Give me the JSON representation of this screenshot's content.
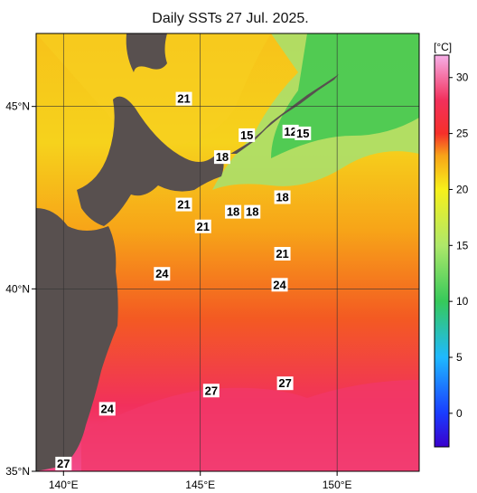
{
  "title": "Daily SSTs 27 Jul. 2025.",
  "map": {
    "lon_min": 139,
    "lon_max": 153,
    "lat_min": 35,
    "lat_max": 47,
    "lon_ticks": [
      {
        "value": 140,
        "label": "140°E"
      },
      {
        "value": 145,
        "label": "145°E"
      },
      {
        "value": 150,
        "label": "150°E"
      }
    ],
    "lat_ticks": [
      {
        "value": 35,
        "label": "35°N"
      },
      {
        "value": 40,
        "label": "40°N"
      },
      {
        "value": 45,
        "label": "45°N"
      }
    ],
    "land_color": "#58504f",
    "grid": true
  },
  "colorbar": {
    "unit": "[°C]",
    "min": -3,
    "max": 32,
    "ticks": [
      {
        "value": 0,
        "label": "0"
      },
      {
        "value": 5,
        "label": "5"
      },
      {
        "value": 10,
        "label": "10"
      },
      {
        "value": 15,
        "label": "15"
      },
      {
        "value": 20,
        "label": "20"
      },
      {
        "value": 25,
        "label": "25"
      },
      {
        "value": 30,
        "label": "30"
      }
    ],
    "stops": [
      {
        "value": -3,
        "color": "#3a00cc"
      },
      {
        "value": 0,
        "color": "#1a3cff"
      },
      {
        "value": 5,
        "color": "#1fb9ff"
      },
      {
        "value": 10,
        "color": "#36c95a"
      },
      {
        "value": 15,
        "color": "#aee86a"
      },
      {
        "value": 20,
        "color": "#f7f01a"
      },
      {
        "value": 23,
        "color": "#f8a418"
      },
      {
        "value": 25,
        "color": "#f6302a"
      },
      {
        "value": 28,
        "color": "#f2305c"
      },
      {
        "value": 32,
        "color": "#f7b0e8"
      }
    ]
  },
  "isotherm_labels": [
    {
      "text": "21",
      "lon": 144.4,
      "lat": 45.2
    },
    {
      "text": "15",
      "lon": 146.7,
      "lat": 44.2
    },
    {
      "text": "12",
      "lon": 148.3,
      "lat": 44.3
    },
    {
      "text": "15",
      "lon": 148.75,
      "lat": 44.25
    },
    {
      "text": "18",
      "lon": 145.8,
      "lat": 43.6
    },
    {
      "text": "18",
      "lon": 148.0,
      "lat": 42.5
    },
    {
      "text": "18",
      "lon": 146.2,
      "lat": 42.1
    },
    {
      "text": "18",
      "lon": 146.9,
      "lat": 42.1
    },
    {
      "text": "21",
      "lon": 144.4,
      "lat": 42.3
    },
    {
      "text": "21",
      "lon": 145.1,
      "lat": 41.7
    },
    {
      "text": "21",
      "lon": 148.0,
      "lat": 40.95
    },
    {
      "text": "24",
      "lon": 143.6,
      "lat": 40.4
    },
    {
      "text": "24",
      "lon": 147.9,
      "lat": 40.1
    },
    {
      "text": "27",
      "lon": 145.4,
      "lat": 37.2
    },
    {
      "text": "27",
      "lon": 148.1,
      "lat": 37.4
    },
    {
      "text": "24",
      "lon": 141.6,
      "lat": 36.7
    },
    {
      "text": "27",
      "lon": 140.0,
      "lat": 35.2
    }
  ]
}
